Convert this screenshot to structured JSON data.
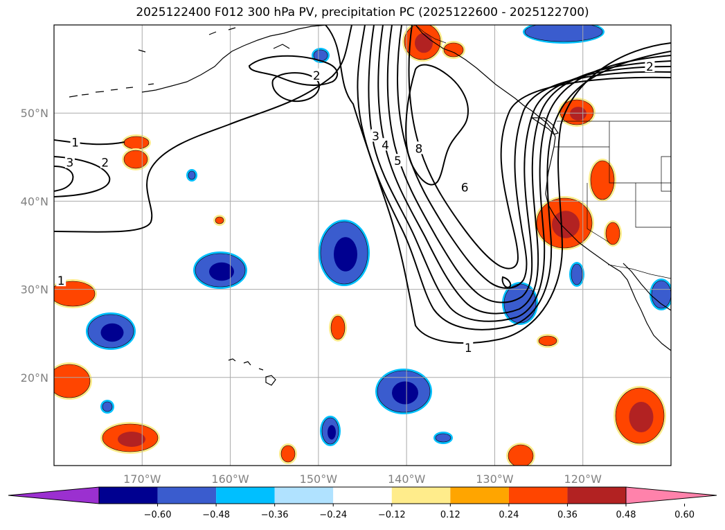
{
  "title": "2025122400 F012 300 hPa PV, precipitation PC (2025122600 - 2025122700)",
  "map": {
    "lon_range": [
      -180,
      -110
    ],
    "lat_range": [
      10,
      60
    ],
    "lat_ticks": [
      {
        "value": 50,
        "label": "50°N"
      },
      {
        "value": 40,
        "label": "40°N"
      },
      {
        "value": 30,
        "label": "30°N"
      },
      {
        "value": 20,
        "label": "20°N"
      }
    ],
    "lon_ticks": [
      {
        "value": -170,
        "label": "170°W"
      },
      {
        "value": -160,
        "label": "160°W"
      },
      {
        "value": -150,
        "label": "150°W"
      },
      {
        "value": -140,
        "label": "140°W"
      },
      {
        "value": -130,
        "label": "130°W"
      },
      {
        "value": -120,
        "label": "120°W"
      }
    ],
    "grid": true,
    "pv_contour_labels": [
      {
        "text": "2",
        "lon": -150.2,
        "lat": 54.2
      },
      {
        "text": "2",
        "lon": -112.4,
        "lat": 55.2
      },
      {
        "text": "1",
        "lon": -177.6,
        "lat": 46.6
      },
      {
        "text": "2",
        "lon": -174.2,
        "lat": 44.3
      },
      {
        "text": "3",
        "lon": -178.2,
        "lat": 44.3
      },
      {
        "text": "3",
        "lon": -143.5,
        "lat": 47.3
      },
      {
        "text": "4",
        "lon": -142.4,
        "lat": 46.3
      },
      {
        "text": "5",
        "lon": -141.0,
        "lat": 44.5
      },
      {
        "text": "8",
        "lon": -138.6,
        "lat": 45.9
      },
      {
        "text": "6",
        "lon": -133.4,
        "lat": 41.5
      },
      {
        "text": "1",
        "lon": -133.0,
        "lat": 23.3
      },
      {
        "text": "1",
        "lon": -179.2,
        "lat": 30.9
      }
    ]
  },
  "colorbar": {
    "tick_labels": [
      "−0.60",
      "−0.48",
      "−0.36",
      "−0.24",
      "−0.12",
      "0.12",
      "0.24",
      "0.36",
      "0.48",
      "0.60"
    ],
    "colors": [
      "#9b30d0",
      "#000090",
      "#3a5cce",
      "#00bfff",
      "#b0e2ff",
      "#ffffff",
      "#ffec8b",
      "#ffa500",
      "#ff4500",
      "#b22222",
      "#ff82ab"
    ]
  },
  "precip_colors": {
    "neg_outer": "#00bfff",
    "neg_mid": "#3a5cce",
    "neg_core": "#000090",
    "pos_outer": "#ffec8b",
    "pos_mid": "#ff4500",
    "pos_core": "#b22222"
  }
}
